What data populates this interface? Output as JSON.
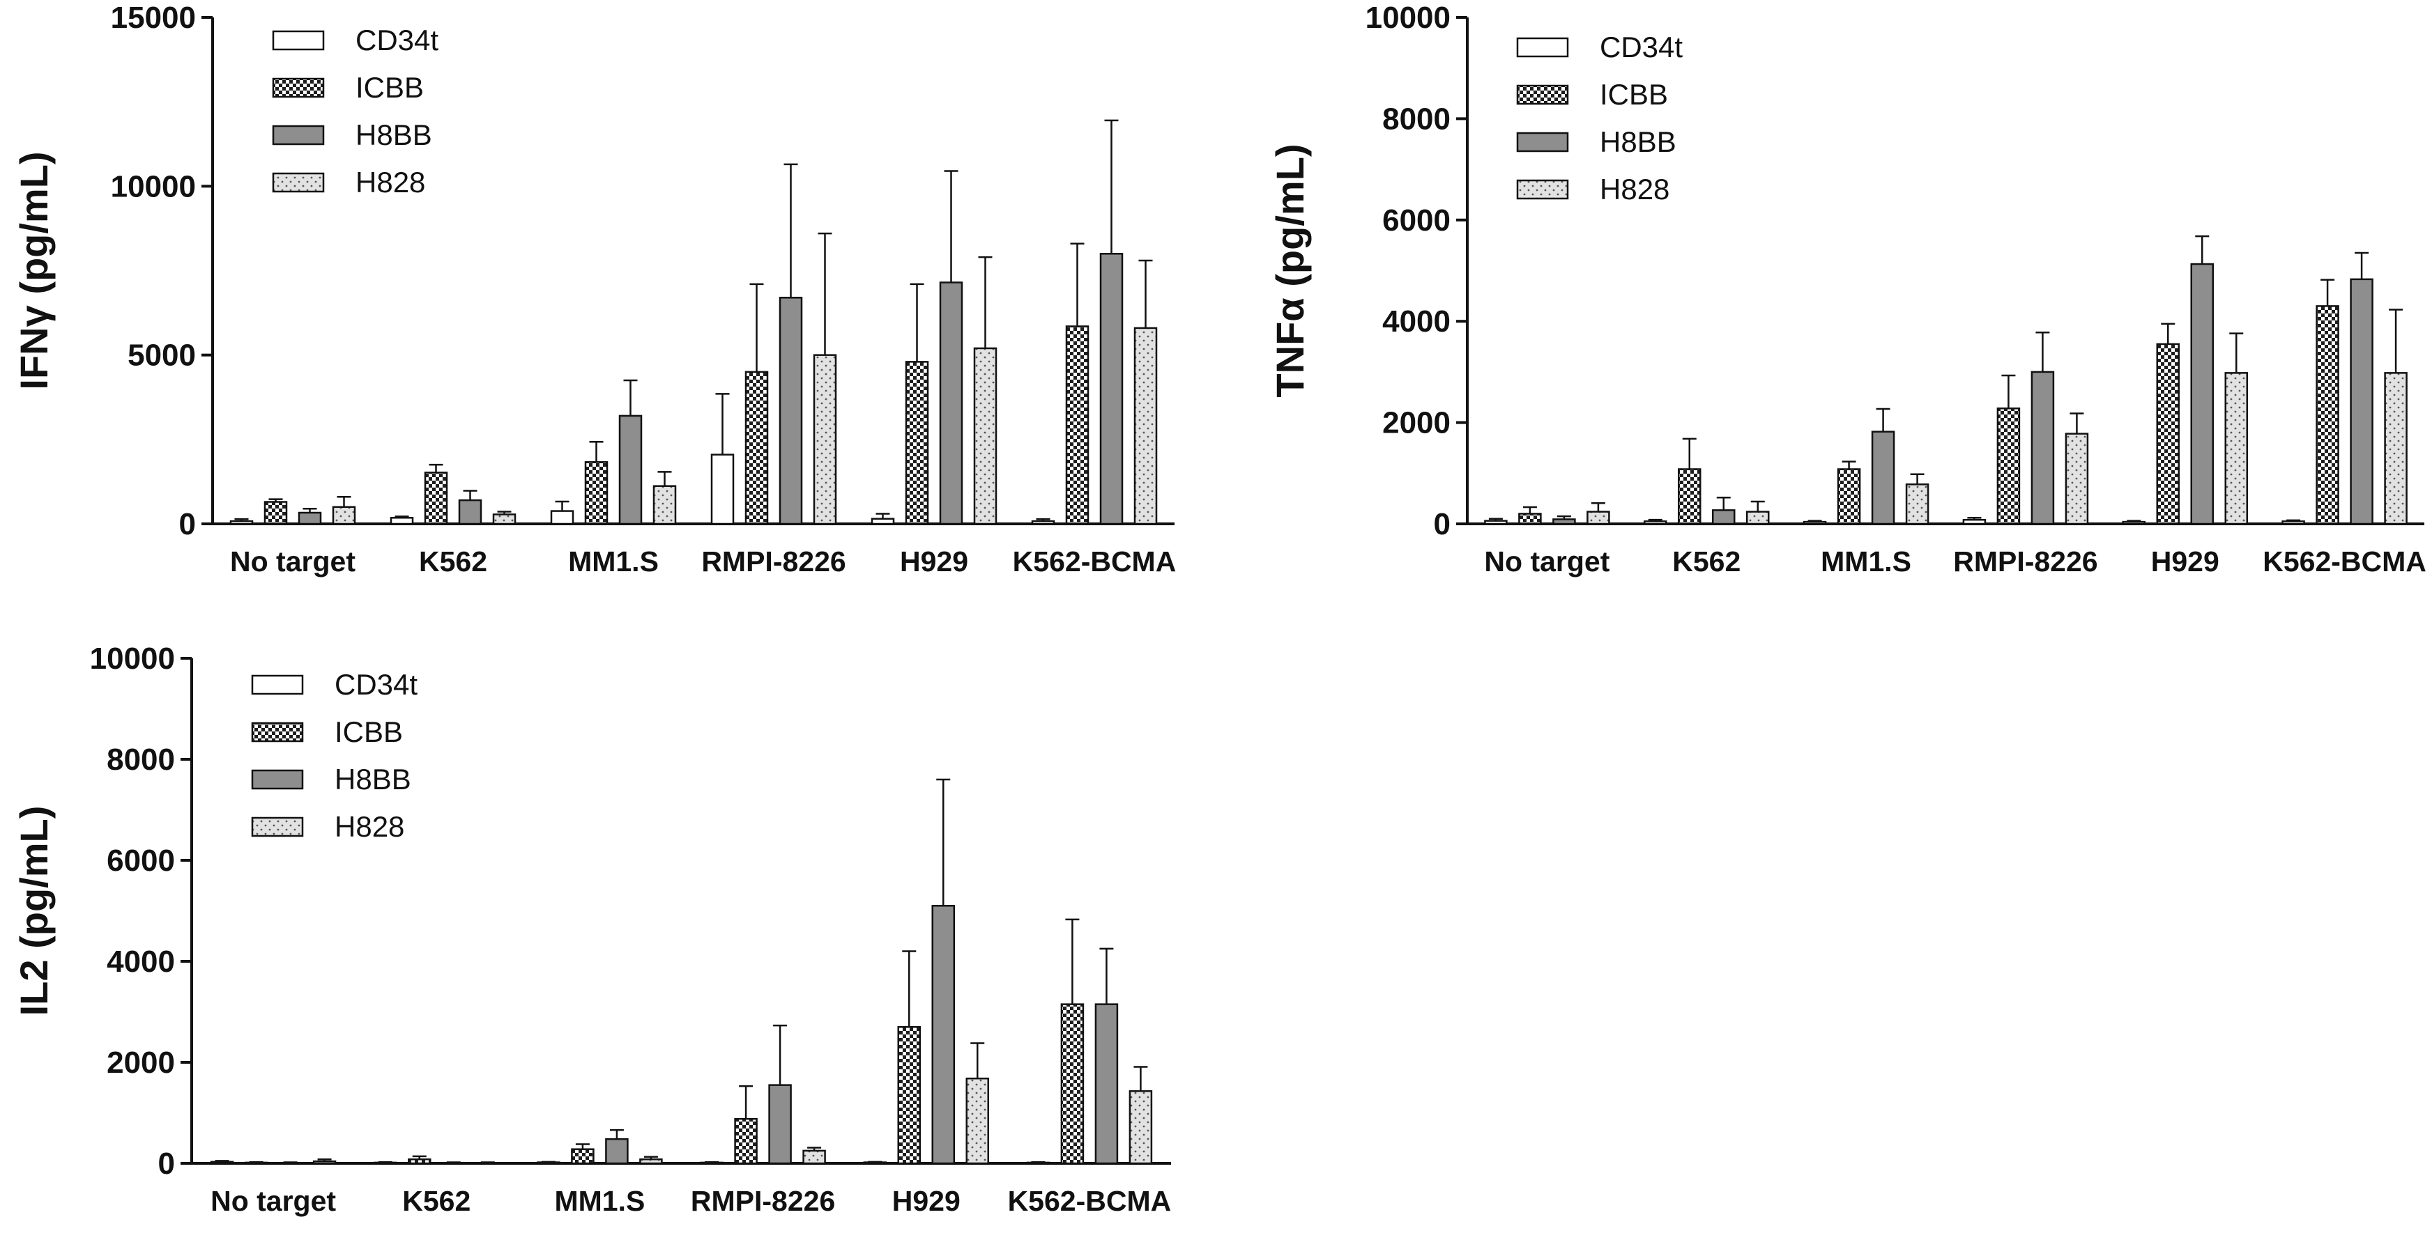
{
  "chart_data": [
    {
      "type": "bar",
      "ylabel": "IFNγ (pg/mL)",
      "ylim": [
        0,
        15000
      ],
      "yticks": [
        "0",
        "5000",
        "10000",
        "15000"
      ],
      "categories": [
        "No target",
        "K562",
        "MM1.S",
        "RMPI-8226",
        "H929",
        "K562-BCMA"
      ],
      "legend_position": "top-left",
      "series": [
        {
          "name": "CD34t",
          "values": [
            80,
            180,
            380,
            2050,
            150,
            80
          ],
          "errors": [
            60,
            40,
            280,
            1800,
            150,
            60
          ]
        },
        {
          "name": "ICBB",
          "values": [
            650,
            1520,
            1830,
            4500,
            4800,
            5850
          ],
          "errors": [
            80,
            230,
            600,
            2600,
            2300,
            2450
          ]
        },
        {
          "name": "H8BB",
          "values": [
            330,
            700,
            3200,
            6700,
            7150,
            8000
          ],
          "errors": [
            120,
            280,
            1050,
            3950,
            3300,
            3950
          ]
        },
        {
          "name": "H828",
          "values": [
            500,
            280,
            1120,
            5000,
            5200,
            5800
          ],
          "errors": [
            300,
            80,
            420,
            3600,
            2700,
            2000
          ]
        }
      ]
    },
    {
      "type": "bar",
      "ylabel": "TNFα (pg/mL)",
      "ylim": [
        0,
        10000
      ],
      "yticks": [
        "0",
        "2000",
        "4000",
        "6000",
        "8000",
        "10000"
      ],
      "categories": [
        "No target",
        "K562",
        "MM1.S",
        "RMPI-8226",
        "H929",
        "K562-BCMA"
      ],
      "legend_position": "top-left",
      "series": [
        {
          "name": "CD34t",
          "values": [
            60,
            50,
            40,
            80,
            40,
            50
          ],
          "errors": [
            40,
            30,
            20,
            40,
            20,
            20
          ]
        },
        {
          "name": "ICBB",
          "values": [
            200,
            1080,
            1080,
            2280,
            3550,
            4300
          ],
          "errors": [
            130,
            600,
            150,
            650,
            400,
            520
          ]
        },
        {
          "name": "H8BB",
          "values": [
            90,
            270,
            1820,
            3000,
            5130,
            4830
          ],
          "errors": [
            60,
            250,
            450,
            780,
            550,
            520
          ]
        },
        {
          "name": "H828",
          "values": [
            240,
            240,
            780,
            1780,
            2980,
            2980
          ],
          "errors": [
            170,
            200,
            200,
            400,
            780,
            1250
          ]
        }
      ]
    },
    {
      "type": "bar",
      "ylabel": "IL2 (pg/mL)",
      "ylim": [
        0,
        10000
      ],
      "yticks": [
        "0",
        "2000",
        "4000",
        "6000",
        "8000",
        "10000"
      ],
      "categories": [
        "No target",
        "K562",
        "MM1.S",
        "RMPI-8226",
        "H929",
        "K562-BCMA"
      ],
      "legend_position": "top-left",
      "series": [
        {
          "name": "CD34t",
          "values": [
            30,
            15,
            20,
            15,
            20,
            15
          ],
          "errors": [
            20,
            10,
            10,
            10,
            10,
            10
          ]
        },
        {
          "name": "ICBB",
          "values": [
            15,
            80,
            280,
            880,
            2700,
            3150
          ],
          "errors": [
            10,
            60,
            100,
            650,
            1500,
            1680
          ]
        },
        {
          "name": "H8BB",
          "values": [
            10,
            10,
            480,
            1550,
            5100,
            3150
          ],
          "errors": [
            10,
            10,
            180,
            1180,
            2500,
            1100
          ]
        },
        {
          "name": "H828",
          "values": [
            40,
            10,
            80,
            250,
            1680,
            1430
          ],
          "errors": [
            40,
            10,
            50,
            60,
            700,
            480
          ]
        }
      ]
    }
  ]
}
